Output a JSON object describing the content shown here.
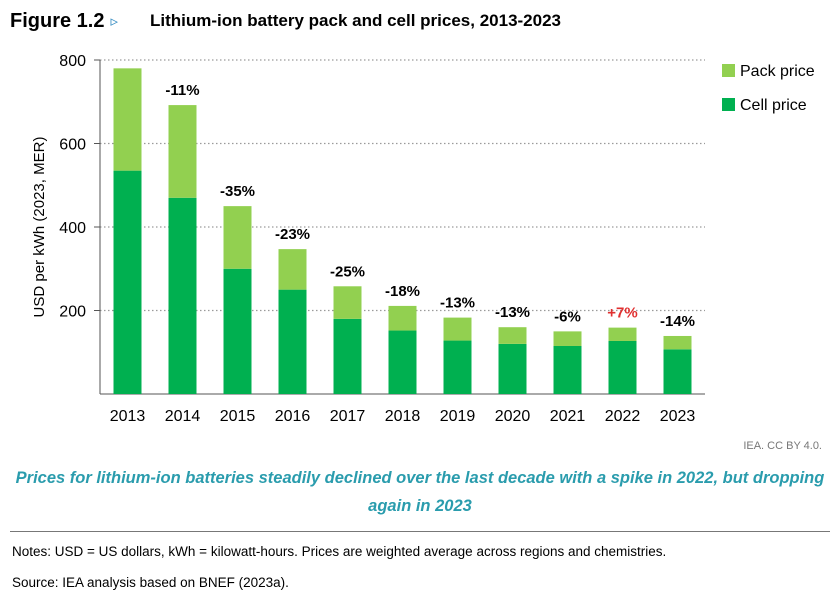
{
  "figure": {
    "label": "Figure 1.2",
    "arrow": "▹",
    "title": "Lithium-ion battery pack and cell prices, 2013-2023"
  },
  "chart_data": {
    "type": "bar",
    "stacked": true,
    "categories": [
      "2013",
      "2014",
      "2015",
      "2016",
      "2017",
      "2018",
      "2019",
      "2020",
      "2021",
      "2022",
      "2023"
    ],
    "series": [
      {
        "name": "Cell price",
        "color": "#00b050",
        "values": [
          535,
          470,
          300,
          250,
          180,
          152,
          128,
          120,
          115,
          127,
          107
        ]
      },
      {
        "name": "Pack price",
        "color": "#92d050",
        "values": [
          245,
          222,
          150,
          97,
          78,
          59,
          55,
          40,
          35,
          32,
          32
        ]
      }
    ],
    "annotations": [
      "",
      "-11%",
      "-35%",
      "-23%",
      "-25%",
      "-18%",
      "-13%",
      "-13%",
      "-6%",
      "+7%",
      "-14%"
    ],
    "annotation_colors": {
      "default": "#000000",
      "positive": "#e03030"
    },
    "ylabel": "USD per kWh (2023, MER)",
    "xlabel": "",
    "ylim": [
      0,
      800
    ],
    "yticks": [
      200,
      400,
      600,
      800
    ],
    "grid": true,
    "legend_position": "top-right",
    "legend_order": [
      "Pack price",
      "Cell price"
    ]
  },
  "credit": "IEA. CC BY 4.0.",
  "caption": "Prices for lithium-ion batteries steadily declined over the last decade with a spike in 2022, but dropping again in 2023",
  "notes": "Notes: USD = US dollars, kWh = kilowatt-hours. Prices are weighted average across regions and chemistries.",
  "source": "Source: IEA analysis based on BNEF (2023a)."
}
